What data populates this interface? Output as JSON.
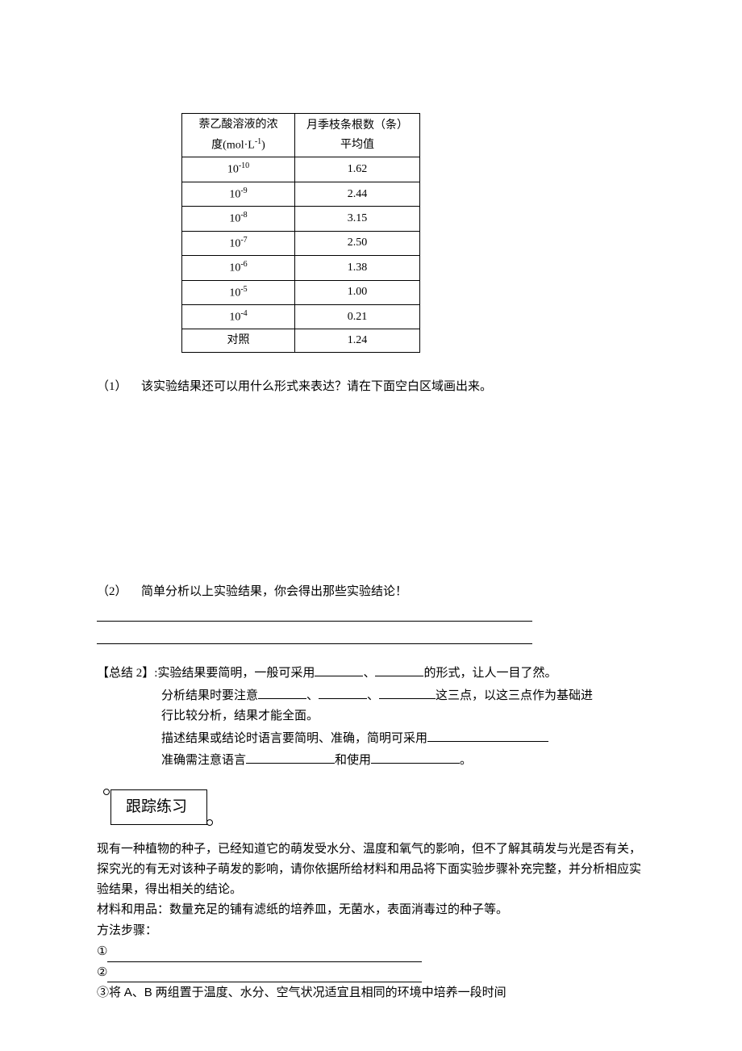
{
  "table": {
    "header": {
      "col1_line1": "萘乙酸溶液的浓",
      "col1_line2": "度(mol·L",
      "col1_sup": "-1",
      "col1_close": ")",
      "col2_line1": "月季枝条根数（条）",
      "col2_line2": "平均值"
    },
    "rows": [
      {
        "conc_base": "10",
        "conc_exp": "-10",
        "value": "1.62"
      },
      {
        "conc_base": "10",
        "conc_exp": "-9",
        "value": "2.44"
      },
      {
        "conc_base": "10",
        "conc_exp": "-8",
        "value": "3.15"
      },
      {
        "conc_base": "10",
        "conc_exp": "-7",
        "value": "2.50"
      },
      {
        "conc_base": "10",
        "conc_exp": "-6",
        "value": "1.38"
      },
      {
        "conc_base": "10",
        "conc_exp": "-5",
        "value": "1.00"
      },
      {
        "conc_base": "10",
        "conc_exp": "-4",
        "value": "0.21"
      },
      {
        "conc_base": "对照",
        "conc_exp": "",
        "value": "1.24"
      }
    ]
  },
  "q1": {
    "num": "（1）",
    "text": "该实验结果还可以用什么形式来表达？请在下面空白区域画出来。"
  },
  "q2": {
    "num": "（2）",
    "text": "简单分析以上实验结果，你会得出那些实验结论！"
  },
  "summary": {
    "label": "【总结 2】:",
    "line1_a": "实验结果要简明，一般可采用",
    "line1_b": "、",
    "line1_c": "的形式，让人一目了然。",
    "line2_a": "分析结果时要注意",
    "line2_b": "、",
    "line2_c": "、",
    "line2_d": "这三点，以这三点作为基础进",
    "line3": "行比较分析，结果才能全面。",
    "line4_a": "描述结果或结论时语言要简明、准确，简明可采用",
    "line5_a": "准确需注意语言",
    "line5_b": "和使用",
    "line5_c": "。"
  },
  "practice_title": "跟踪练习",
  "practice": {
    "p1": "现有一种植物的种子，已经知道它的萌发受水分、温度和氧气的影响，但不了解其萌发与光是否有关，探究光的有无对该种子萌发的影响，请你依据所给材料和用品将下面实验步骤补充完整，并分析相应实验结果，得出相关的结论。",
    "p2": "材料和用品：数量充足的铺有滤纸的培养皿，无菌水，表面消毒过的种子等。",
    "p3": "方法步骤：",
    "step1": "①",
    "step2": "②",
    "step3_a": "③将 ",
    "step3_b": "A",
    "step3_c": "、",
    "step3_d": "B",
    "step3_e": " 两组置于温度、水分、空气状况适宜且相同的环境中培养一段时间"
  }
}
